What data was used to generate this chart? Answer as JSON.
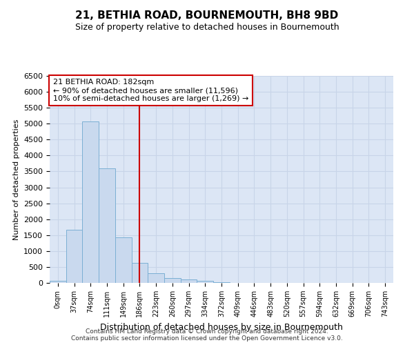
{
  "title": "21, BETHIA ROAD, BOURNEMOUTH, BH8 9BD",
  "subtitle": "Size of property relative to detached houses in Bournemouth",
  "xlabel": "Distribution of detached houses by size in Bournemouth",
  "ylabel": "Number of detached properties",
  "footer_line1": "Contains HM Land Registry data © Crown copyright and database right 2024.",
  "footer_line2": "Contains public sector information licensed under the Open Government Licence v3.0.",
  "bar_labels": [
    "0sqm",
    "37sqm",
    "74sqm",
    "111sqm",
    "149sqm",
    "186sqm",
    "223sqm",
    "260sqm",
    "297sqm",
    "334sqm",
    "372sqm",
    "409sqm",
    "446sqm",
    "483sqm",
    "520sqm",
    "557sqm",
    "594sqm",
    "632sqm",
    "669sqm",
    "706sqm",
    "743sqm"
  ],
  "bar_values": [
    60,
    1670,
    5080,
    3600,
    1430,
    620,
    300,
    150,
    100,
    60,
    30,
    0,
    0,
    0,
    0,
    0,
    0,
    0,
    0,
    0,
    0
  ],
  "bar_color": "#c9d9ee",
  "bar_edge_color": "#7bafd4",
  "ylim": [
    0,
    6500
  ],
  "yticks": [
    0,
    500,
    1000,
    1500,
    2000,
    2500,
    3000,
    3500,
    4000,
    4500,
    5000,
    5500,
    6000,
    6500
  ],
  "vline_x": 5,
  "vline_color": "#cc0000",
  "annotation_line1": "21 BETHIA ROAD: 182sqm",
  "annotation_line2": "← 90% of detached houses are smaller (11,596)",
  "annotation_line3": "10% of semi-detached houses are larger (1,269) →",
  "annotation_box_color": "#ffffff",
  "annotation_border_color": "#cc0000",
  "grid_color": "#c8d4e8",
  "background_color": "#dce6f5"
}
